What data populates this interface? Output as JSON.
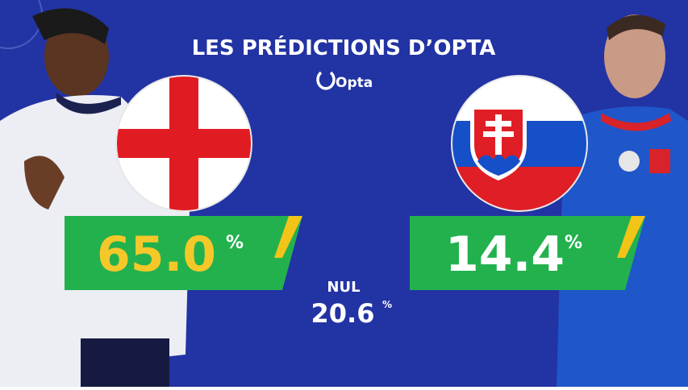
{
  "title": "LES PRÉDICTIONS D’OPTA",
  "brand": "Opta",
  "predictions": [
    {
      "value": "65.0",
      "unit": "%"
    },
    {
      "value": "14.4",
      "unit": "%"
    }
  ],
  "draw": {
    "label": "NUL",
    "value": "20.6",
    "unit": "%"
  }
}
